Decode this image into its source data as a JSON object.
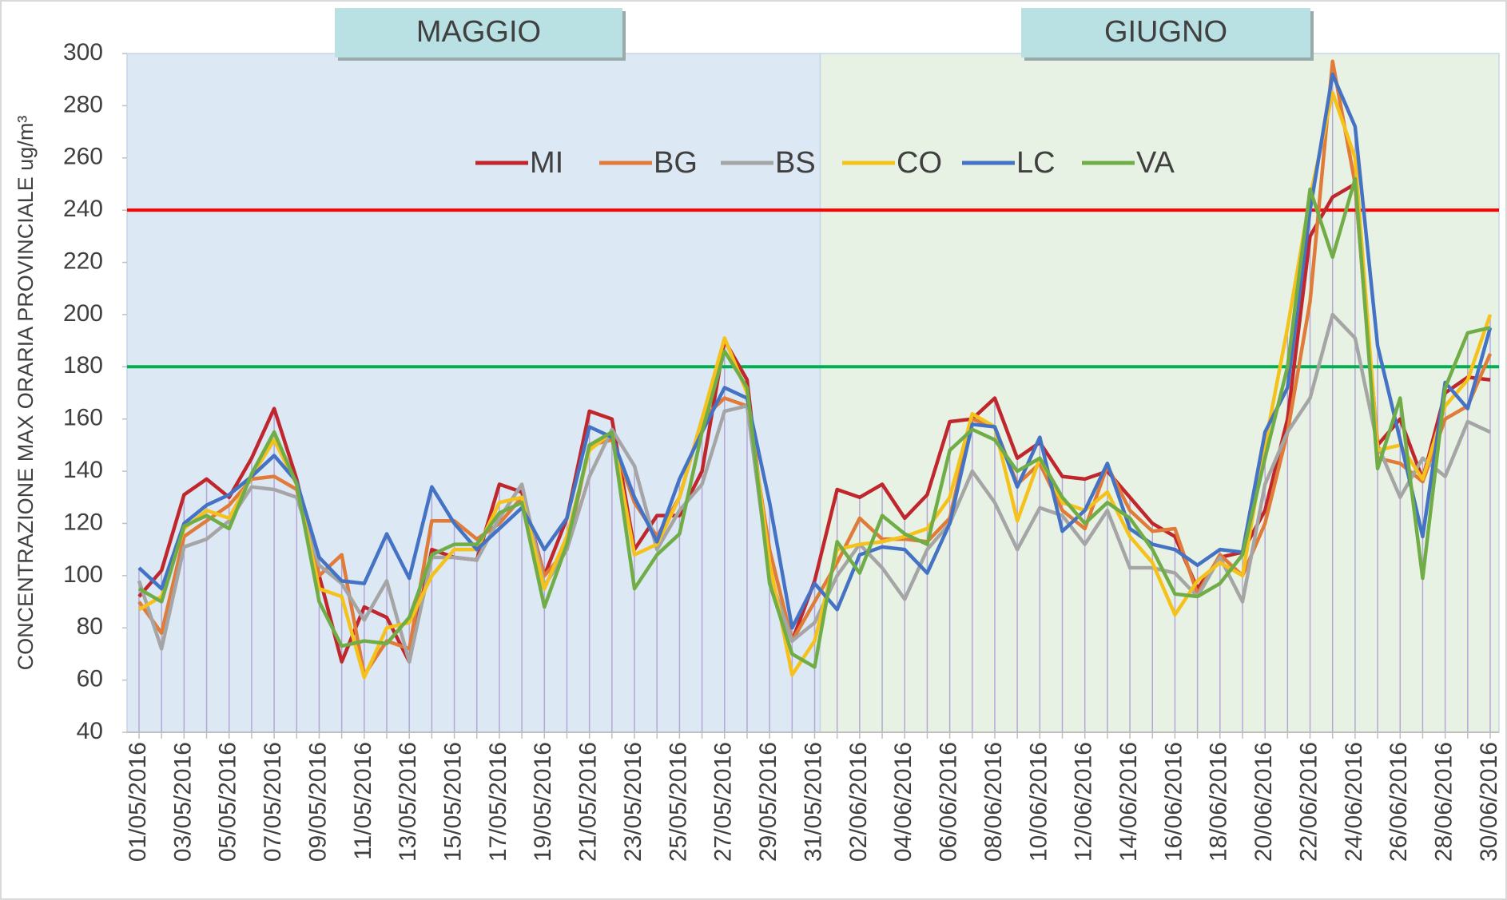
{
  "chart_data": {
    "type": "line",
    "y_label": "CONCENTRAZIONE MAX ORARIA PROVINCIALE  ug/m³",
    "months": [
      {
        "label": "MAGGIO",
        "color": "#dce8f4"
      },
      {
        "label": "GIUGNO",
        "color": "#e8f2e4"
      }
    ],
    "thresholds": [
      {
        "value": 240,
        "color": "#ff0000"
      },
      {
        "value": 180,
        "color": "#00b050"
      }
    ],
    "categories": [
      "01/05/2016",
      null,
      "03/05/2016",
      null,
      "05/05/2016",
      null,
      "07/05/2016",
      null,
      "09/05/2016",
      null,
      "11/05/2016",
      null,
      "13/05/2016",
      null,
      "15/05/2016",
      null,
      "17/05/2016",
      null,
      "19/05/2016",
      null,
      "21/05/2016",
      null,
      "23/05/2016",
      null,
      "25/05/2016",
      null,
      "27/05/2016",
      null,
      "29/05/2016",
      null,
      "31/05/2016",
      null,
      "02/06/2016",
      null,
      "04/06/2016",
      null,
      "06/06/2016",
      null,
      "08/06/2016",
      null,
      "10/06/2016",
      null,
      "12/06/2016",
      null,
      "14/06/2016",
      null,
      "16/06/2016",
      null,
      "18/06/2016",
      null,
      "20/06/2016",
      null,
      "22/06/2016",
      null,
      "24/06/2016",
      null,
      "26/06/2016",
      null,
      "28/06/2016",
      null,
      "30/06/2016"
    ],
    "series": [
      {
        "name": "MI",
        "color": "#c0272d",
        "values": [
          92,
          102,
          131,
          137,
          130,
          145,
          164,
          137,
          100,
          67,
          88,
          84,
          67,
          110,
          107,
          106,
          135,
          132,
          100,
          122,
          163,
          160,
          110,
          123,
          123,
          140,
          190,
          175,
          100,
          75,
          98,
          133,
          130,
          135,
          122,
          131,
          159,
          160,
          168,
          145,
          151,
          138,
          137,
          140,
          130,
          120,
          115,
          95,
          107,
          109,
          125,
          160,
          230,
          245,
          250,
          150,
          160,
          137,
          170,
          176,
          175
        ]
      },
      {
        "name": "BG",
        "color": "#e07b39",
        "values": [
          90,
          78,
          115,
          121,
          127,
          137,
          138,
          133,
          100,
          108,
          62,
          75,
          72,
          121,
          121,
          114,
          120,
          130,
          100,
          110,
          150,
          152,
          128,
          115,
          130,
          160,
          168,
          165,
          110,
          75,
          90,
          105,
          122,
          114,
          114,
          113,
          122,
          160,
          157,
          135,
          143,
          125,
          118,
          142,
          125,
          117,
          118,
          93,
          108,
          100,
          120,
          155,
          205,
          297,
          250,
          145,
          143,
          136,
          160,
          165,
          185
        ]
      },
      {
        "name": "BS",
        "color": "#a5a5a5",
        "values": [
          98,
          72,
          111,
          114,
          121,
          134,
          133,
          130,
          104,
          97,
          83,
          98,
          67,
          107,
          107,
          106,
          122,
          135,
          96,
          110,
          138,
          156,
          142,
          110,
          125,
          135,
          163,
          165,
          100,
          75,
          82,
          100,
          112,
          103,
          91,
          110,
          120,
          140,
          128,
          110,
          126,
          123,
          112,
          125,
          103,
          103,
          101,
          92,
          107,
          90,
          135,
          155,
          168,
          200,
          191,
          150,
          130,
          145,
          138,
          159,
          155
        ]
      },
      {
        "name": "CO",
        "color": "#f5c21b",
        "values": [
          87,
          92,
          118,
          125,
          122,
          138,
          152,
          135,
          95,
          92,
          61,
          80,
          82,
          100,
          110,
          110,
          128,
          130,
          95,
          115,
          148,
          155,
          108,
          112,
          130,
          160,
          191,
          170,
          105,
          62,
          75,
          110,
          112,
          113,
          115,
          118,
          130,
          162,
          157,
          121,
          145,
          128,
          125,
          132,
          115,
          105,
          85,
          98,
          105,
          100,
          150,
          195,
          245,
          285,
          260,
          148,
          150,
          137,
          165,
          175,
          200
        ]
      },
      {
        "name": "LC",
        "color": "#4472c4",
        "values": [
          103,
          95,
          120,
          127,
          131,
          138,
          146,
          136,
          107,
          98,
          97,
          116,
          99,
          134,
          120,
          110,
          118,
          126,
          110,
          122,
          157,
          153,
          130,
          113,
          137,
          155,
          172,
          168,
          128,
          80,
          97,
          87,
          108,
          111,
          110,
          101,
          120,
          158,
          157,
          134,
          153,
          117,
          125,
          143,
          118,
          112,
          110,
          104,
          110,
          109,
          155,
          172,
          240,
          292,
          272,
          188,
          152,
          115,
          174,
          164,
          195
        ]
      },
      {
        "name": "VA",
        "color": "#70ad47",
        "values": [
          95,
          90,
          119,
          123,
          118,
          139,
          155,
          135,
          90,
          73,
          75,
          74,
          84,
          108,
          112,
          112,
          124,
          128,
          88,
          112,
          150,
          155,
          95,
          108,
          116,
          155,
          186,
          172,
          97,
          70,
          65,
          113,
          101,
          123,
          116,
          112,
          148,
          156,
          152,
          140,
          145,
          130,
          120,
          128,
          122,
          110,
          93,
          92,
          97,
          108,
          145,
          180,
          248,
          222,
          252,
          141,
          168,
          99,
          172,
          193,
          195
        ]
      }
    ],
    "ylim": [
      40,
      300
    ],
    "yticks": [
      40,
      60,
      80,
      100,
      120,
      140,
      160,
      180,
      200,
      220,
      240,
      260,
      280,
      300
    ],
    "grid": false,
    "legend": "top"
  }
}
